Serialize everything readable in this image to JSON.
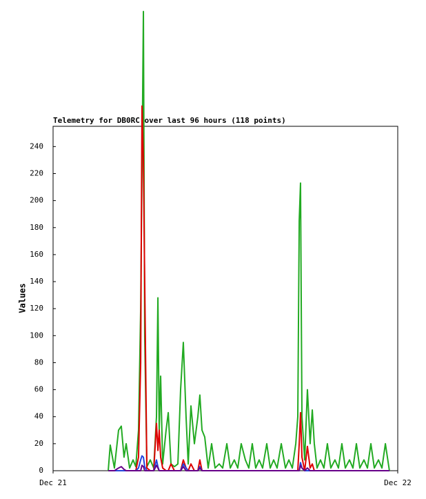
{
  "chart_data": {
    "type": "line",
    "title": "Telemetry for DB0RC over last 96 hours (118 points)",
    "y_label": "Values",
    "xlim": [
      0,
      24
    ],
    "xticks": [
      {
        "value": 0,
        "label": "Dec 21"
      },
      {
        "value": 24,
        "label": "Dec 22"
      }
    ],
    "ylim": [
      0,
      255
    ],
    "yticks": [
      0,
      20,
      40,
      60,
      80,
      100,
      120,
      140,
      160,
      180,
      200,
      220,
      240
    ],
    "x": [
      3.84,
      3.98,
      4.27,
      4.56,
      4.75,
      4.94,
      5.09,
      5.33,
      5.57,
      5.76,
      5.95,
      6.1,
      6.19,
      6.29,
      6.38,
      6.53,
      6.77,
      7.01,
      7.2,
      7.3,
      7.39,
      7.49,
      7.63,
      7.87,
      8.02,
      8.21,
      8.45,
      8.69,
      8.88,
      9.07,
      9.26,
      9.41,
      9.6,
      9.84,
      10.08,
      10.22,
      10.37,
      10.56,
      10.8,
      11.04,
      11.28,
      11.57,
      11.81,
      12.1,
      12.34,
      12.62,
      12.86,
      13.1,
      13.39,
      13.63,
      13.87,
      14.11,
      14.35,
      14.59,
      14.88,
      15.12,
      15.36,
      15.6,
      15.89,
      16.18,
      16.42,
      16.66,
      16.9,
      17.04,
      17.14,
      17.23,
      17.33,
      17.52,
      17.71,
      17.9,
      18.05,
      18.19,
      18.38,
      18.62,
      18.86,
      19.1,
      19.34,
      19.63,
      19.87,
      20.11,
      20.35,
      20.64,
      20.88,
      21.12,
      21.36,
      21.65,
      21.89,
      22.13,
      22.37,
      22.66,
      22.9,
      23.14,
      23.42
    ],
    "series": [
      {
        "color": "#22aa22",
        "values": [
          0,
          19,
          2,
          30,
          33,
          10,
          20,
          2,
          8,
          3,
          30,
          120,
          220,
          340,
          100,
          3,
          8,
          2,
          40,
          128,
          30,
          70,
          5,
          30,
          43,
          5,
          3,
          5,
          60,
          95,
          40,
          5,
          48,
          20,
          40,
          56,
          30,
          25,
          2,
          20,
          2,
          5,
          2,
          20,
          2,
          8,
          2,
          20,
          8,
          2,
          20,
          2,
          8,
          2,
          20,
          2,
          8,
          2,
          20,
          2,
          8,
          2,
          20,
          40,
          185,
          213,
          40,
          8,
          60,
          20,
          45,
          20,
          2,
          8,
          2,
          20,
          2,
          8,
          2,
          20,
          2,
          8,
          2,
          20,
          2,
          8,
          2,
          20,
          2,
          8,
          2,
          20,
          0
        ]
      },
      {
        "color": "#dd0000",
        "values": [
          0,
          0,
          0,
          0,
          0,
          0,
          0,
          0,
          0,
          0,
          10,
          80,
          270,
          230,
          140,
          2,
          0,
          0,
          35,
          15,
          30,
          10,
          2,
          0,
          0,
          5,
          0,
          0,
          0,
          8,
          2,
          0,
          5,
          0,
          0,
          8,
          0,
          0,
          0,
          0,
          0,
          0,
          0,
          0,
          0,
          0,
          0,
          0,
          0,
          0,
          0,
          0,
          0,
          0,
          0,
          0,
          0,
          0,
          0,
          0,
          0,
          0,
          0,
          0,
          20,
          43,
          10,
          0,
          18,
          2,
          5,
          0,
          0,
          0,
          0,
          0,
          0,
          0,
          0,
          0,
          0,
          0,
          0,
          0,
          0,
          0,
          0,
          0,
          0,
          0,
          0,
          0,
          0
        ]
      },
      {
        "color": "#2244dd",
        "values": [
          0,
          0,
          0,
          0,
          0,
          0,
          0,
          0,
          0,
          0,
          2,
          8,
          11,
          10,
          3,
          0,
          0,
          0,
          8,
          3,
          0,
          0,
          0,
          0,
          0,
          0,
          0,
          0,
          0,
          5,
          2,
          0,
          0,
          0,
          0,
          3,
          0,
          0,
          0,
          0,
          0,
          0,
          0,
          0,
          0,
          0,
          0,
          0,
          0,
          0,
          0,
          0,
          0,
          0,
          0,
          0,
          0,
          0,
          0,
          0,
          0,
          0,
          0,
          0,
          0,
          6,
          2,
          0,
          0,
          0,
          0,
          0,
          0,
          0,
          0,
          0,
          0,
          0,
          0,
          0,
          0,
          0,
          0,
          0,
          0,
          0,
          0,
          0,
          0,
          0,
          0,
          0,
          0
        ]
      },
      {
        "color": "#660088",
        "values": [
          0,
          0,
          0,
          2,
          3,
          1,
          0,
          0,
          0,
          0,
          0,
          0,
          4,
          3,
          0,
          0,
          0,
          0,
          4,
          2,
          0,
          0,
          0,
          0,
          0,
          0,
          0,
          0,
          0,
          3,
          0,
          0,
          0,
          0,
          0,
          2,
          0,
          0,
          0,
          0,
          0,
          0,
          0,
          0,
          0,
          0,
          0,
          0,
          0,
          0,
          0,
          0,
          0,
          0,
          0,
          0,
          0,
          0,
          0,
          0,
          0,
          0,
          0,
          0,
          0,
          4,
          2,
          0,
          2,
          0,
          0,
          0,
          0,
          0,
          0,
          0,
          0,
          0,
          0,
          0,
          0,
          0,
          0,
          0,
          0,
          0,
          0,
          0,
          0,
          0,
          0,
          0,
          0
        ]
      }
    ]
  }
}
